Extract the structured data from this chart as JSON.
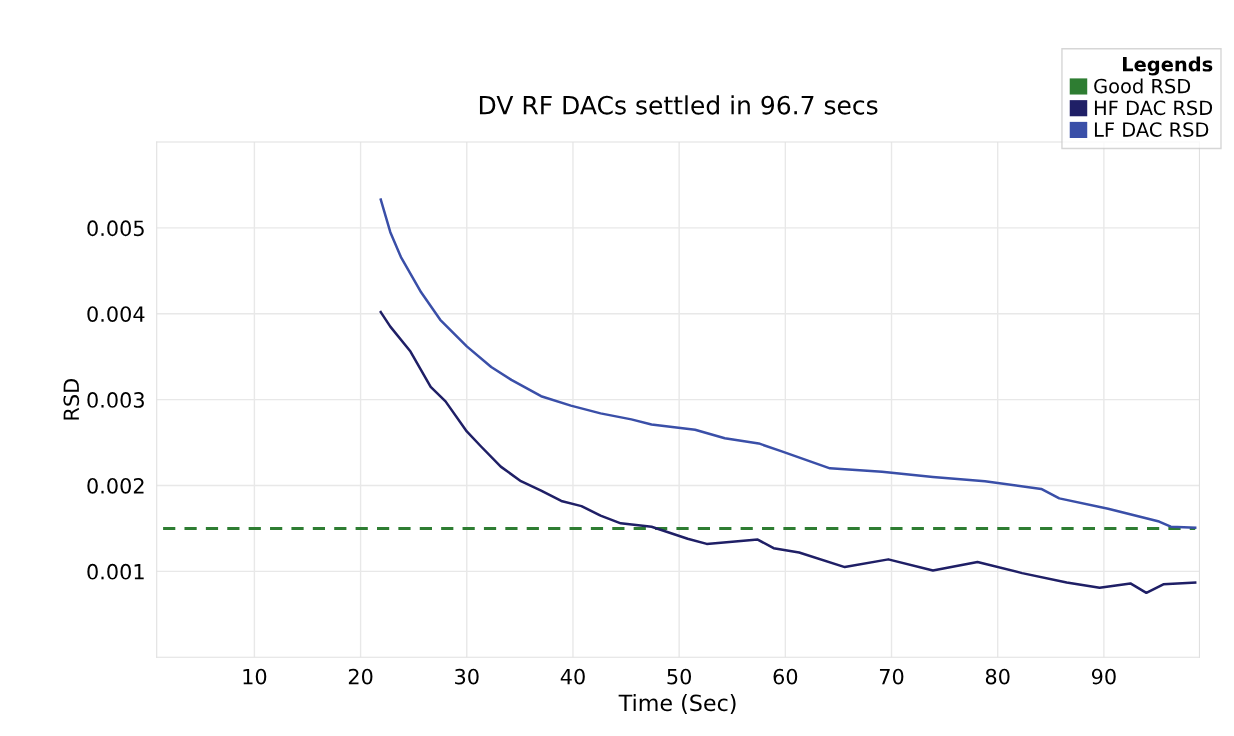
{
  "chart_data": {
    "type": "line",
    "title": "DV RF DACs settled in 96.7 secs",
    "xlabel": "Time (Sec)",
    "ylabel": "RSD",
    "legend_title": "Legends",
    "series": [
      {
        "name": "Good RSD",
        "color": "#2e7d32",
        "line_style": "dashed",
        "x": [
          1.4,
          98.6
        ],
        "values": [
          0.0015,
          0.0015
        ]
      },
      {
        "name": "HF DAC RSD",
        "color": "#1f1f66",
        "x": [
          21.9,
          22.8,
          24.7,
          26.6,
          28.0,
          30.0,
          31.3,
          33.2,
          35.1,
          37.0,
          38.9,
          40.8,
          42.6,
          44.5,
          47.4,
          50.8,
          52.6,
          57.4,
          58.9,
          61.3,
          65.6,
          69.7,
          73.9,
          78.1,
          82.3,
          86.5,
          89.6,
          92.5,
          94.0,
          95.6,
          98.6
        ],
        "values": [
          0.00402,
          0.00385,
          0.00356,
          0.00315,
          0.00298,
          0.00263,
          0.00246,
          0.00222,
          0.00205,
          0.00194,
          0.00182,
          0.00176,
          0.00165,
          0.00156,
          0.00152,
          0.00138,
          0.00132,
          0.00137,
          0.00127,
          0.00122,
          0.00105,
          0.00114,
          0.00101,
          0.00111,
          0.00098,
          0.00087,
          0.00081,
          0.00086,
          0.00075,
          0.00085,
          0.00087
        ]
      },
      {
        "name": "LF DAC RSD",
        "color": "#3a4fa8",
        "x": [
          21.9,
          22.8,
          23.8,
          25.7,
          27.5,
          30.0,
          32.3,
          34.2,
          37.0,
          39.8,
          42.6,
          45.5,
          47.4,
          51.5,
          54.3,
          57.5,
          59.6,
          64.2,
          69.1,
          73.9,
          78.8,
          84.1,
          85.8,
          90.4,
          95.2,
          96.3,
          98.6
        ],
        "values": [
          0.00533,
          0.00495,
          0.00466,
          0.00425,
          0.00393,
          0.00362,
          0.00338,
          0.00323,
          0.00304,
          0.00293,
          0.00284,
          0.00277,
          0.00271,
          0.00265,
          0.00255,
          0.00249,
          0.0024,
          0.0022,
          0.00216,
          0.0021,
          0.00205,
          0.00196,
          0.00185,
          0.00173,
          0.00158,
          0.00152,
          0.00151
        ]
      }
    ],
    "xlim": [
      0.8,
      99
    ],
    "xticks": [
      10,
      20,
      30,
      40,
      50,
      60,
      70,
      80,
      90
    ],
    "ylim": [
      0,
      0.006
    ],
    "yticks": [
      0.001,
      0.002,
      0.003,
      0.004,
      0.005
    ],
    "grid": true,
    "legend": "top right"
  }
}
